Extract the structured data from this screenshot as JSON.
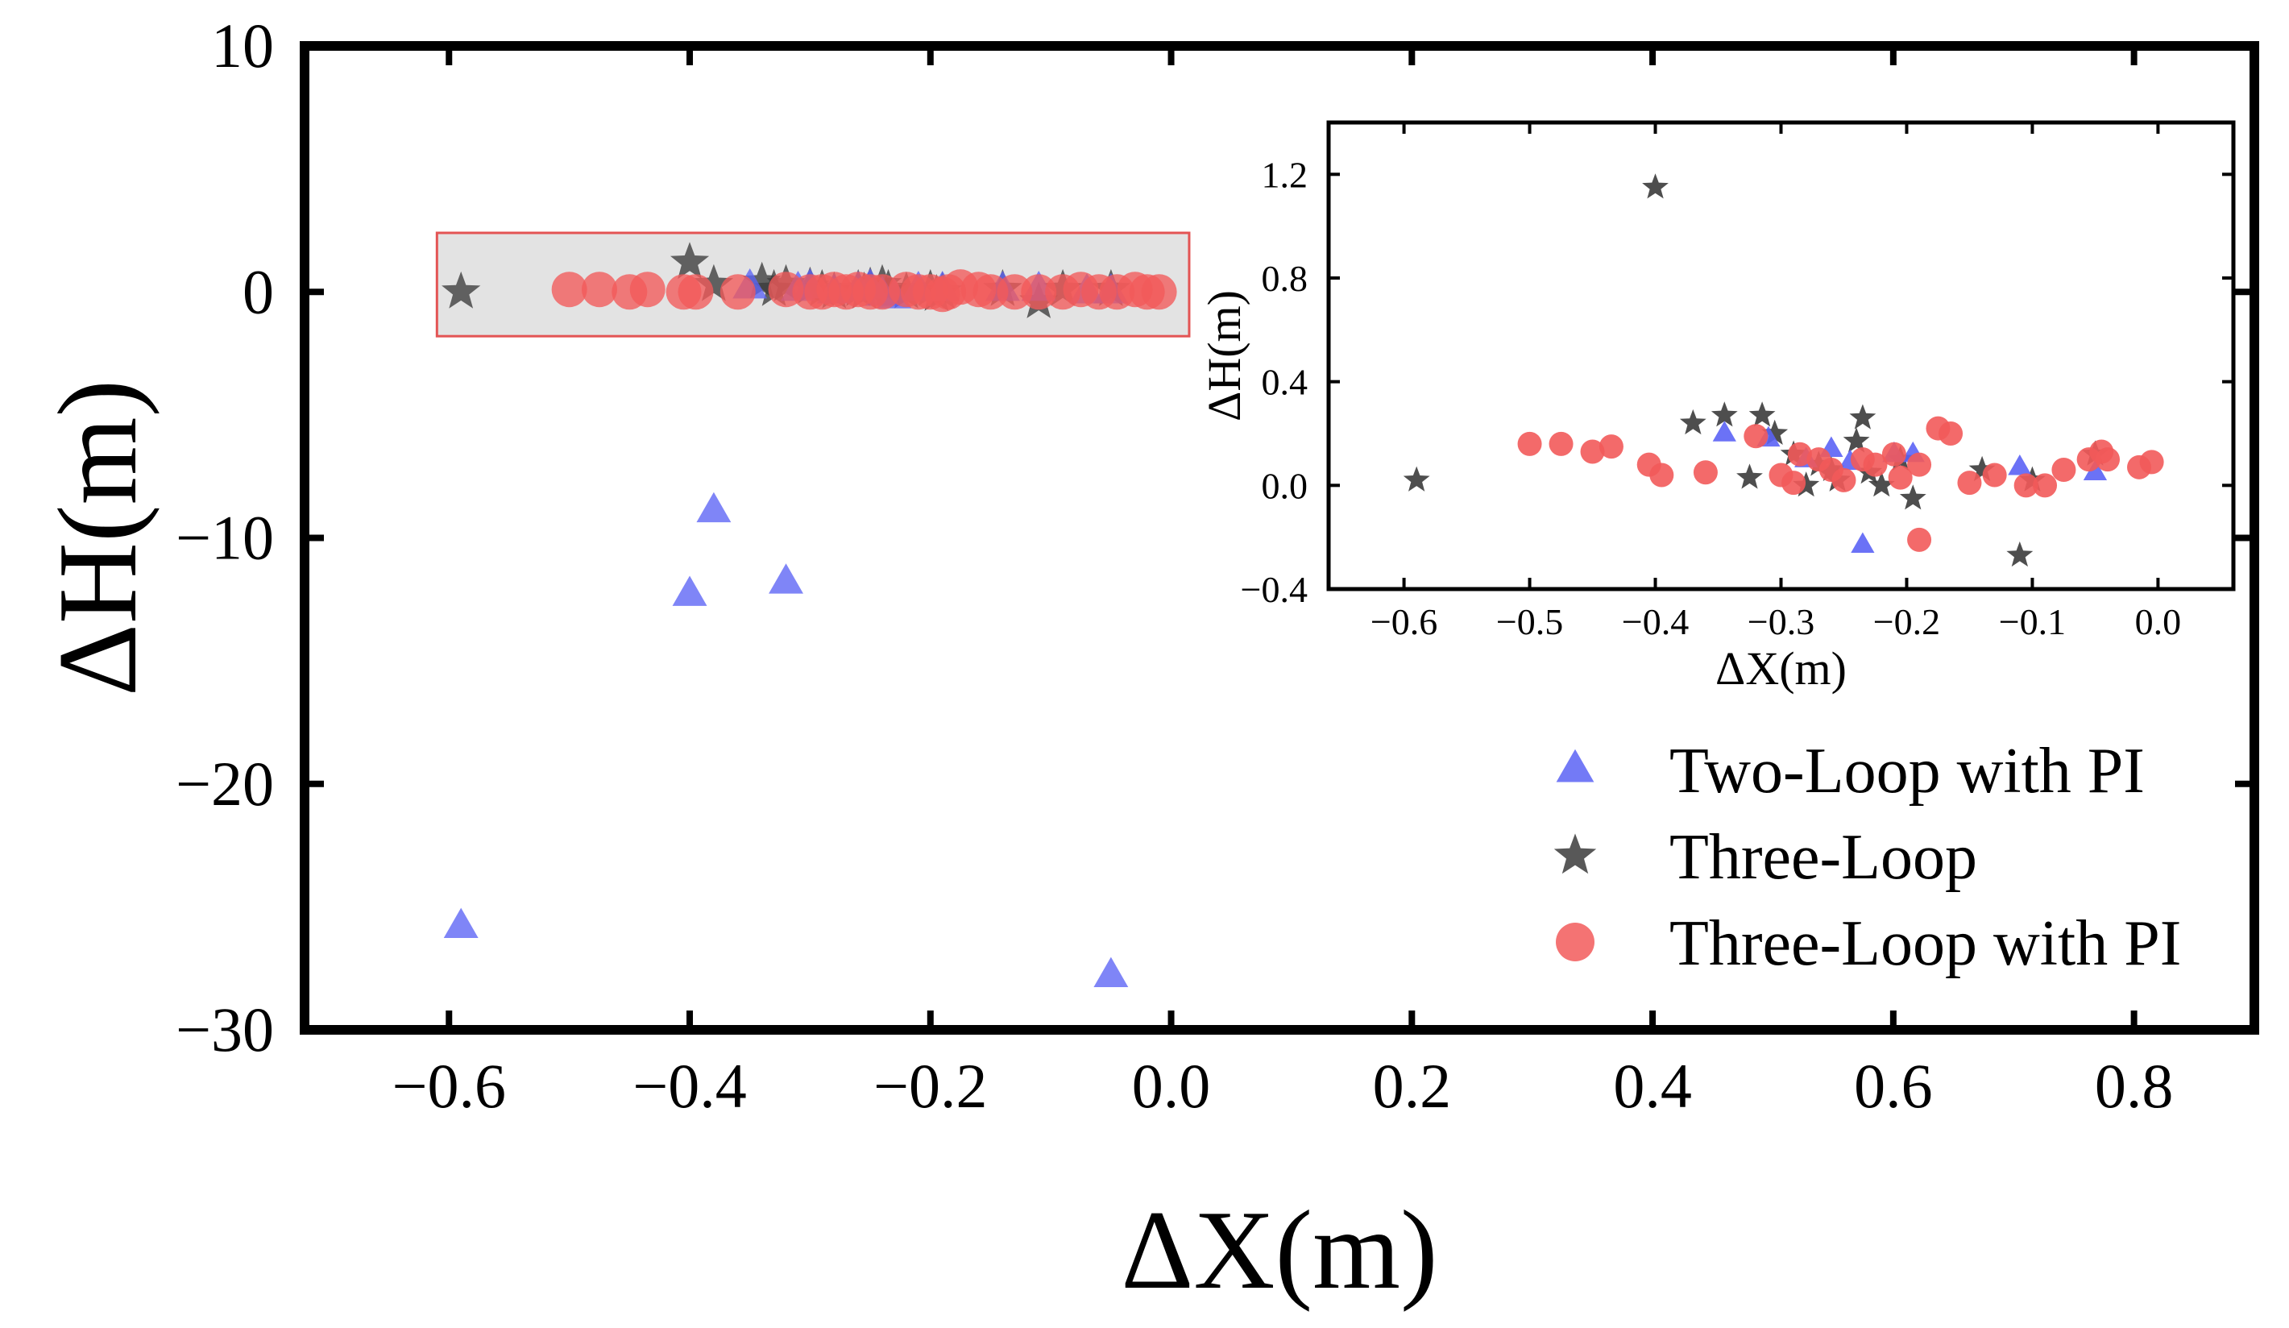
{
  "chart_data": [
    {
      "panel": "main",
      "type": "scatter",
      "xlabel": "ΔX(m)",
      "ylabel": "ΔH(m)",
      "xlim": [
        -0.72,
        0.9
      ],
      "ylim": [
        -30,
        10
      ],
      "xticks": [
        -0.6,
        -0.4,
        -0.2,
        0.0,
        0.2,
        0.4,
        0.6,
        0.8
      ],
      "xtick_labels": [
        "−0.6",
        "−0.4",
        "−0.2",
        "0.0",
        "0.2",
        "0.4",
        "0.6",
        "0.8"
      ],
      "yticks": [
        -30,
        -20,
        -10,
        0,
        10
      ],
      "ytick_labels": [
        "−30",
        "−20",
        "−10",
        "0",
        "10"
      ],
      "highlight_box": {
        "x": [
          -0.61,
          0.015
        ],
        "y": [
          -1.8,
          2.4
        ],
        "note": "zoomed region shown in inset"
      },
      "series": [
        {
          "name": "Two-Loop with PI",
          "marker": "triangle",
          "color": "#5b63f5",
          "x": [
            -0.59,
            -0.4,
            -0.38,
            -0.32,
            -0.05,
            -0.35,
            -0.31,
            -0.3,
            -0.28,
            -0.26,
            -0.25,
            -0.24,
            -0.23,
            -0.21,
            -0.19,
            -0.14,
            -0.11,
            -0.07,
            -0.05
          ],
          "y": [
            -25.8,
            -12.3,
            -8.9,
            -11.8,
            -27.8,
            0.2,
            0.1,
            0.2,
            0.0,
            0.1,
            0.2,
            -0.1,
            -0.2,
            0.1,
            0.1,
            0.1,
            0.1,
            0.0,
            0.0
          ]
        },
        {
          "name": "Three-Loop",
          "marker": "star",
          "color": "#3b3b3b",
          "x": [
            -0.59,
            -0.4,
            -0.38,
            -0.34,
            -0.33,
            -0.32,
            -0.3,
            -0.29,
            -0.28,
            -0.26,
            -0.255,
            -0.25,
            -0.24,
            -0.235,
            -0.22,
            -0.2,
            -0.195,
            -0.19,
            -0.14,
            -0.11,
            -0.09,
            -0.05
          ],
          "y": [
            0.0,
            1.2,
            0.3,
            0.4,
            0.1,
            0.3,
            0.2,
            0.1,
            0.0,
            0.1,
            0.0,
            0.2,
            0.3,
            0.1,
            0.0,
            0.1,
            -0.1,
            0.0,
            0.1,
            -0.4,
            0.1,
            0.1
          ]
        },
        {
          "name": "Three-Loop with PI",
          "marker": "circle",
          "color": "#f25a5a",
          "x": [
            -0.5,
            -0.475,
            -0.45,
            -0.435,
            -0.405,
            -0.395,
            -0.36,
            -0.32,
            -0.3,
            -0.29,
            -0.28,
            -0.27,
            -0.26,
            -0.25,
            -0.24,
            -0.22,
            -0.21,
            -0.2,
            -0.19,
            -0.185,
            -0.175,
            -0.16,
            -0.15,
            -0.13,
            -0.11,
            -0.09,
            -0.075,
            -0.06,
            -0.045,
            -0.03,
            -0.02,
            -0.01
          ],
          "y": [
            0.1,
            0.1,
            0.0,
            0.1,
            0.0,
            0.0,
            0.0,
            0.1,
            0.0,
            0.0,
            0.1,
            0.0,
            0.1,
            0.0,
            0.0,
            0.1,
            0.0,
            0.0,
            -0.1,
            0.0,
            0.2,
            0.1,
            0.0,
            0.0,
            0.0,
            0.0,
            0.1,
            0.0,
            0.0,
            0.1,
            0.0,
            0.0
          ]
        }
      ],
      "legend": {
        "placement": "bottom-right",
        "entries": [
          "Two-Loop with PI",
          "Three-Loop",
          "Three-Loop with PI"
        ]
      }
    },
    {
      "panel": "inset",
      "type": "scatter",
      "placement": "top-right",
      "xlabel": "ΔX(m)",
      "ylabel": "ΔH(m)",
      "xlim": [
        -0.66,
        0.06
      ],
      "ylim": [
        -0.4,
        1.4
      ],
      "xticks": [
        -0.6,
        -0.5,
        -0.4,
        -0.3,
        -0.2,
        -0.1,
        0.0
      ],
      "xtick_labels": [
        "−0.6",
        "−0.5",
        "−0.4",
        "−0.3",
        "−0.2",
        "−0.1",
        "0.0"
      ],
      "yticks": [
        -0.4,
        0.0,
        0.4,
        0.8,
        1.2
      ],
      "ytick_labels": [
        "−0.4",
        "0.0",
        "0.4",
        "0.8",
        "1.2"
      ],
      "series": [
        {
          "name": "Two-Loop with PI",
          "marker": "triangle",
          "color": "#5b63f5",
          "x": [
            -0.345,
            -0.31,
            -0.28,
            -0.26,
            -0.245,
            -0.235,
            -0.21,
            -0.195,
            -0.11,
            -0.05
          ],
          "y": [
            0.2,
            0.18,
            0.1,
            0.14,
            0.09,
            -0.23,
            0.12,
            0.12,
            0.07,
            0.05
          ]
        },
        {
          "name": "Three-Loop",
          "marker": "star",
          "color": "#3b3b3b",
          "x": [
            -0.59,
            -0.4,
            -0.37,
            -0.345,
            -0.325,
            -0.315,
            -0.305,
            -0.29,
            -0.28,
            -0.27,
            -0.26,
            -0.255,
            -0.24,
            -0.235,
            -0.23,
            -0.22,
            -0.205,
            -0.195,
            -0.14,
            -0.11,
            -0.1,
            -0.05
          ],
          "y": [
            0.02,
            1.15,
            0.24,
            0.27,
            0.03,
            0.27,
            0.2,
            0.12,
            0.0,
            0.08,
            0.06,
            0.02,
            0.17,
            0.26,
            0.05,
            0.0,
            0.1,
            -0.05,
            0.06,
            -0.27,
            0.02,
            0.12
          ]
        },
        {
          "name": "Three-Loop with PI",
          "marker": "circle",
          "color": "#f25a5a",
          "x": [
            -0.5,
            -0.475,
            -0.45,
            -0.435,
            -0.405,
            -0.395,
            -0.36,
            -0.32,
            -0.3,
            -0.29,
            -0.285,
            -0.27,
            -0.26,
            -0.25,
            -0.235,
            -0.225,
            -0.21,
            -0.205,
            -0.19,
            -0.19,
            -0.175,
            -0.165,
            -0.15,
            -0.13,
            -0.105,
            -0.09,
            -0.075,
            -0.055,
            -0.045,
            -0.04,
            -0.015,
            -0.005
          ],
          "y": [
            0.16,
            0.16,
            0.13,
            0.15,
            0.08,
            0.04,
            0.05,
            0.19,
            0.04,
            0.01,
            0.12,
            0.1,
            0.06,
            0.02,
            0.1,
            0.08,
            0.12,
            0.03,
            0.08,
            -0.21,
            0.22,
            0.2,
            0.01,
            0.04,
            0.0,
            0.0,
            0.06,
            0.1,
            0.13,
            0.1,
            0.07,
            0.09
          ]
        }
      ]
    }
  ]
}
